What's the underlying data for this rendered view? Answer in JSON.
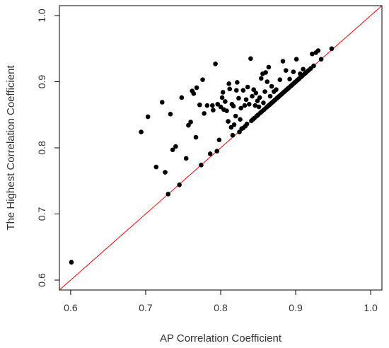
{
  "chart_data": {
    "type": "scatter",
    "title": "",
    "xlabel": "AP Correlation Coefficient",
    "ylabel": "The Highest Correlation Coefficient",
    "xlim": [
      0.585,
      1.015
    ],
    "ylim": [
      0.585,
      1.015
    ],
    "x_ticks": [
      0.6,
      0.7,
      0.8,
      0.9,
      1.0
    ],
    "y_ticks": [
      0.6,
      0.7,
      0.8,
      0.9,
      1.0
    ],
    "x_tick_labels": [
      "0.6",
      "0.7",
      "0.8",
      "0.9",
      "1.0"
    ],
    "y_tick_labels": [
      "0.6",
      "0.7",
      "0.8",
      "0.9",
      "1.0"
    ],
    "grid": false,
    "reference_line": {
      "type": "identity",
      "from": [
        0.585,
        0.585
      ],
      "to": [
        1.015,
        1.015
      ],
      "color": "#ff0000"
    },
    "point_color": "#000000",
    "points": [
      [
        0.601,
        0.627
      ],
      [
        0.694,
        0.824
      ],
      [
        0.703,
        0.847
      ],
      [
        0.714,
        0.771
      ],
      [
        0.722,
        0.869
      ],
      [
        0.726,
        0.763
      ],
      [
        0.73,
        0.73
      ],
      [
        0.733,
        0.851
      ],
      [
        0.736,
        0.797
      ],
      [
        0.74,
        0.802
      ],
      [
        0.745,
        0.744
      ],
      [
        0.748,
        0.876
      ],
      [
        0.754,
        0.784
      ],
      [
        0.757,
        0.834
      ],
      [
        0.76,
        0.839
      ],
      [
        0.762,
        0.886
      ],
      [
        0.764,
        0.882
      ],
      [
        0.767,
        0.816
      ],
      [
        0.768,
        0.891
      ],
      [
        0.772,
        0.865
      ],
      [
        0.774,
        0.774
      ],
      [
        0.776,
        0.903
      ],
      [
        0.778,
        0.852
      ],
      [
        0.782,
        0.864
      ],
      [
        0.786,
        0.791
      ],
      [
        0.789,
        0.864
      ],
      [
        0.79,
        0.857
      ],
      [
        0.793,
        0.927
      ],
      [
        0.795,
        0.795
      ],
      [
        0.796,
        0.866
      ],
      [
        0.798,
        0.812
      ],
      [
        0.8,
        0.862
      ],
      [
        0.802,
        0.876
      ],
      [
        0.803,
        0.884
      ],
      [
        0.804,
        0.858
      ],
      [
        0.806,
        0.87
      ],
      [
        0.808,
        0.856
      ],
      [
        0.81,
        0.84
      ],
      [
        0.811,
        0.897
      ],
      [
        0.812,
        0.889
      ],
      [
        0.814,
        0.831
      ],
      [
        0.815,
        0.866
      ],
      [
        0.816,
        0.819
      ],
      [
        0.817,
        0.863
      ],
      [
        0.818,
        0.835
      ],
      [
        0.82,
        0.848
      ],
      [
        0.821,
        0.887
      ],
      [
        0.822,
        0.899
      ],
      [
        0.824,
        0.875
      ],
      [
        0.825,
        0.824
      ],
      [
        0.826,
        0.843
      ],
      [
        0.827,
        0.86
      ],
      [
        0.828,
        0.829
      ],
      [
        0.83,
        0.83
      ],
      [
        0.83,
        0.887
      ],
      [
        0.832,
        0.864
      ],
      [
        0.833,
        0.833
      ],
      [
        0.834,
        0.873
      ],
      [
        0.835,
        0.836
      ],
      [
        0.836,
        0.892
      ],
      [
        0.838,
        0.866
      ],
      [
        0.84,
        0.935
      ],
      [
        0.841,
        0.841
      ],
      [
        0.842,
        0.878
      ],
      [
        0.843,
        0.843
      ],
      [
        0.844,
        0.888
      ],
      [
        0.845,
        0.845
      ],
      [
        0.846,
        0.864
      ],
      [
        0.847,
        0.883
      ],
      [
        0.848,
        0.848
      ],
      [
        0.849,
        0.871
      ],
      [
        0.85,
        0.85
      ],
      [
        0.851,
        0.862
      ],
      [
        0.852,
        0.876
      ],
      [
        0.853,
        0.853
      ],
      [
        0.854,
        0.905
      ],
      [
        0.855,
        0.855
      ],
      [
        0.856,
        0.912
      ],
      [
        0.857,
        0.868
      ],
      [
        0.858,
        0.858
      ],
      [
        0.859,
        0.885
      ],
      [
        0.86,
        0.914
      ],
      [
        0.861,
        0.861
      ],
      [
        0.862,
        0.9
      ],
      [
        0.863,
        0.863
      ],
      [
        0.864,
        0.922
      ],
      [
        0.865,
        0.865
      ],
      [
        0.866,
        0.878
      ],
      [
        0.867,
        0.867
      ],
      [
        0.868,
        0.893
      ],
      [
        0.869,
        0.869
      ],
      [
        0.87,
        0.87
      ],
      [
        0.871,
        0.885
      ],
      [
        0.872,
        0.872
      ],
      [
        0.873,
        0.873
      ],
      [
        0.874,
        0.888
      ],
      [
        0.875,
        0.875
      ],
      [
        0.876,
        0.876
      ],
      [
        0.877,
        0.877
      ],
      [
        0.878,
        0.878
      ],
      [
        0.879,
        0.903
      ],
      [
        0.88,
        0.88
      ],
      [
        0.881,
        0.881
      ],
      [
        0.882,
        0.882
      ],
      [
        0.883,
        0.931
      ],
      [
        0.884,
        0.884
      ],
      [
        0.885,
        0.885
      ],
      [
        0.886,
        0.886
      ],
      [
        0.887,
        0.917
      ],
      [
        0.888,
        0.888
      ],
      [
        0.889,
        0.889
      ],
      [
        0.89,
        0.89
      ],
      [
        0.891,
        0.891
      ],
      [
        0.892,
        0.904
      ],
      [
        0.893,
        0.893
      ],
      [
        0.894,
        0.894
      ],
      [
        0.895,
        0.895
      ],
      [
        0.896,
        0.896
      ],
      [
        0.897,
        0.915
      ],
      [
        0.898,
        0.898
      ],
      [
        0.899,
        0.899
      ],
      [
        0.9,
        0.9
      ],
      [
        0.901,
        0.934
      ],
      [
        0.902,
        0.902
      ],
      [
        0.903,
        0.903
      ],
      [
        0.904,
        0.904
      ],
      [
        0.905,
        0.905
      ],
      [
        0.906,
        0.912
      ],
      [
        0.907,
        0.907
      ],
      [
        0.909,
        0.909
      ],
      [
        0.91,
        0.919
      ],
      [
        0.912,
        0.912
      ],
      [
        0.914,
        0.914
      ],
      [
        0.917,
        0.917
      ],
      [
        0.92,
        0.92
      ],
      [
        0.922,
        0.942
      ],
      [
        0.924,
        0.924
      ],
      [
        0.927,
        0.944
      ],
      [
        0.93,
        0.947
      ],
      [
        0.934,
        0.934
      ],
      [
        0.948,
        0.95
      ]
    ]
  }
}
